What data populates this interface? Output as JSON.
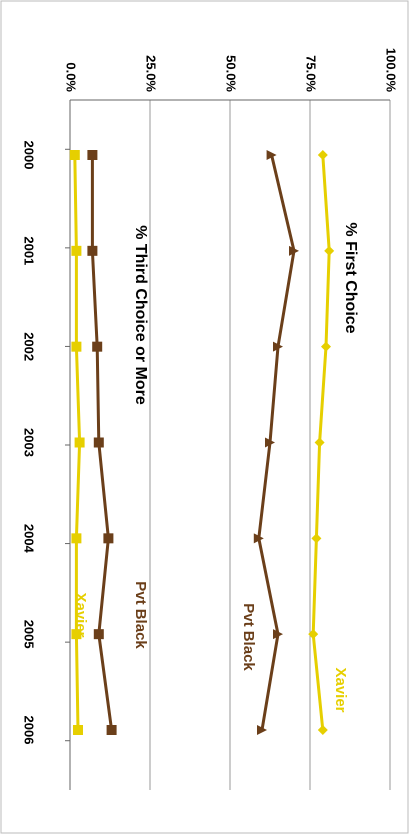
{
  "chart_data": {
    "type": "line",
    "categories": [
      "2000",
      "2001",
      "2002",
      "2003",
      "2004",
      "2005",
      "2006"
    ],
    "series": [
      {
        "name": "Xavier",
        "color": "#e6cf00",
        "marker": "diamond",
        "values": [
          79,
          81,
          80,
          78,
          77,
          76,
          79
        ]
      },
      {
        "name": "Pvt Black",
        "color": "#6b3f1a",
        "marker": "triangle",
        "values": [
          63,
          70,
          65,
          62.5,
          59,
          65,
          60
        ]
      },
      {
        "name": "Pvt Black",
        "color": "#6b3f1a",
        "marker": "square",
        "values": [
          7,
          7,
          8.5,
          9,
          12,
          9,
          13
        ]
      },
      {
        "name": "Xavier",
        "color": "#e6cf00",
        "marker": "square",
        "values": [
          1.5,
          2,
          2,
          3,
          2,
          2,
          2.5
        ]
      }
    ],
    "annotations": [
      "% First Choice",
      "% Third Choice or More"
    ],
    "ylim": [
      0,
      100
    ],
    "yticks": [
      {
        "value": 0,
        "label": "0.0%"
      },
      {
        "value": 25,
        "label": "25.0%"
      },
      {
        "value": 50,
        "label": "50.0%"
      },
      {
        "value": 75,
        "label": "75.0%"
      },
      {
        "value": 100,
        "label": "100.0%"
      }
    ],
    "grid": true
  }
}
